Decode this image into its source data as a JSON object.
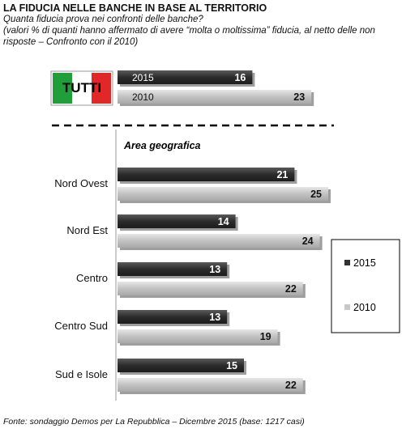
{
  "title": "LA FIDUCIA NELLE BANCHE IN BASE AL TERRITORIO",
  "subtitle": "Quanta fiducia prova nei confronti delle banche?\n(valori % di quanti hanno affermato di avere “molta o moltissima” fiducia, al netto delle non risposte  – Confronto con il 2010)",
  "source": "Fonte: sondaggio Demos per La Repubblica – Dicembre 2015 (base: 1217 casi)",
  "flag_label": "TUTTI",
  "section_label": "Area geografica",
  "colors": {
    "s2015": "#3a3a3a",
    "s2010": "#c8c8c8",
    "flag_green": "#1f9e3a",
    "flag_red": "#e02828"
  },
  "chart_data": {
    "type": "bar",
    "orientation": "horizontal",
    "title": "LA FIDUCIA NELLE BANCHE IN BASE AL TERRITORIO",
    "categories": [
      "TUTTI",
      "Nord Ovest",
      "Nord Est",
      "Centro",
      "Centro Sud",
      "Sud e Isole"
    ],
    "series": [
      {
        "name": "2015",
        "values": [
          16,
          21,
          14,
          13,
          13,
          15
        ]
      },
      {
        "name": "2010",
        "values": [
          23,
          25,
          24,
          22,
          19,
          22
        ]
      }
    ],
    "legend": [
      "2015",
      "2010"
    ],
    "legend_position": "right",
    "grid": false
  }
}
